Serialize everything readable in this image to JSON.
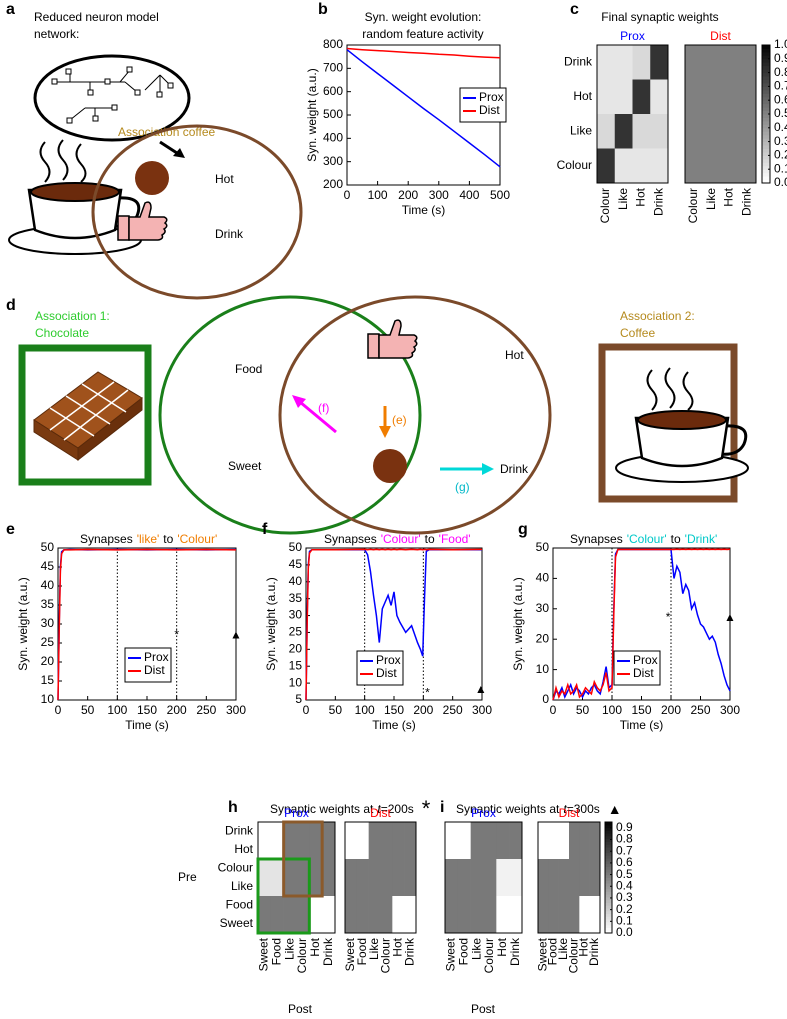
{
  "diagrams": {
    "a": {
      "panel": "a",
      "caption_lines": [
        "Reduced neuron model",
        "network:"
      ],
      "association": "Association coffee",
      "items": [
        "Hot",
        "Drink"
      ]
    },
    "d": {
      "panel": "d",
      "association_1": [
        "Association 1:",
        "Chocolate"
      ],
      "association_2": [
        "Association 2:",
        "Coffee"
      ],
      "labels": {
        "food": "Food",
        "sweet": "Sweet",
        "hot": "Hot",
        "drink": "Drink"
      },
      "arrows": [
        "(e)",
        "(f)",
        "(g)"
      ]
    }
  },
  "chart_data": [
    {
      "type": "line",
      "panel": "b",
      "title_lines": [
        "Syn. weight evolution:",
        "random feature activity"
      ],
      "xlabel": "Time (s)",
      "ylabel": "Syn. weight (a.u.)",
      "x": [
        0,
        50,
        100,
        150,
        200,
        250,
        300,
        350,
        400,
        450,
        500
      ],
      "series": [
        {
          "name": "Prox",
          "color": "#0000ff",
          "values": [
            780,
            728,
            678,
            628,
            578,
            528,
            480,
            430,
            380,
            330,
            278
          ]
        },
        {
          "name": "Dist",
          "color": "#ff0000",
          "values": [
            785,
            780,
            776,
            772,
            768,
            765,
            760,
            757,
            752,
            748,
            745
          ]
        }
      ],
      "xlim": [
        0,
        500
      ],
      "xticks": [
        0,
        100,
        200,
        300,
        400,
        500
      ],
      "ylim": [
        200,
        800
      ],
      "yticks": [
        200,
        300,
        400,
        500,
        600,
        700,
        800
      ]
    },
    {
      "type": "heatmap",
      "panel": "c",
      "title": "Final synaptic weights",
      "rows": [
        "Drink",
        "Hot",
        "Like",
        "Colour"
      ],
      "columns": [
        "Colour",
        "Like",
        "Hot",
        "Drink"
      ],
      "matrices": [
        {
          "name": "Prox",
          "color": "#0000ff",
          "values": [
            [
              0.1,
              0.1,
              0.15,
              0.8
            ],
            [
              0.1,
              0.1,
              0.8,
              0.1
            ],
            [
              0.15,
              0.8,
              0.15,
              0.15
            ],
            [
              0.8,
              0.1,
              0.1,
              0.1
            ]
          ]
        },
        {
          "name": "Dist",
          "color": "#ff0000",
          "values": [
            [
              0.5,
              0.5,
              0.5,
              0.5
            ],
            [
              0.5,
              0.5,
              0.5,
              0.5
            ],
            [
              0.5,
              0.5,
              0.5,
              0.5
            ],
            [
              0.5,
              0.5,
              0.5,
              0.5
            ]
          ]
        }
      ],
      "clim": [
        0,
        1
      ],
      "colorbar_ticks": [
        {
          "value": 0,
          "label": "0.0"
        },
        0.1,
        0.2,
        0.3,
        0.4,
        0.5,
        0.6,
        0.7,
        0.8,
        0.9,
        {
          "value": 1,
          "label": "1.0"
        }
      ]
    },
    {
      "type": "line",
      "panel": "e",
      "title_parts": [
        {
          "text": "Synapses",
          "color": "#000000"
        },
        {
          "text": "'like'",
          "color": "#f07d00"
        },
        {
          "text": "to",
          "color": "#000000"
        },
        {
          "text": "'Colour'",
          "color": "#f07d00"
        }
      ],
      "xlabel": "Time (s)",
      "ylabel": "Syn. weight (a.u.)",
      "x": [
        0,
        2,
        4,
        6,
        10,
        20,
        50,
        100,
        150,
        200,
        250,
        300
      ],
      "series": [
        {
          "name": "Prox",
          "color": "#0000ff",
          "values": [
            10,
            30,
            45,
            49,
            49.5,
            49.6,
            49.5,
            49.6,
            49.5,
            49.6,
            49.5,
            49.6
          ]
        },
        {
          "name": "Dist",
          "color": "#ff0000",
          "values": [
            10,
            28,
            44,
            48.5,
            49.5,
            49.5,
            49.6,
            49.5,
            49.6,
            49.5,
            49.6,
            49.5
          ]
        }
      ],
      "xlim": [
        0,
        300
      ],
      "xticks": [
        0,
        50,
        100,
        150,
        200,
        250,
        300
      ],
      "ylim": [
        10,
        50
      ],
      "yticks": [
        10,
        15,
        20,
        25,
        30,
        35,
        40,
        45,
        50
      ],
      "vlines": [
        100,
        200,
        300
      ],
      "annotations": [
        {
          "text": "*",
          "x": 200,
          "y": 27
        },
        {
          "text": "▲",
          "x": 300,
          "y": 27
        }
      ]
    },
    {
      "type": "line",
      "panel": "f",
      "title_parts": [
        {
          "text": "Synapses",
          "color": "#000000"
        },
        {
          "text": "'Colour'",
          "color": "#ff00ff"
        },
        {
          "text": "to",
          "color": "#000000"
        },
        {
          "text": "'Food'",
          "color": "#ff00ff"
        }
      ],
      "xlabel": "Time (s)",
      "ylabel": "Syn. weight (a.u.)",
      "x": [
        0,
        2,
        4,
        6,
        10,
        50,
        100,
        105,
        110,
        115,
        120,
        125,
        130,
        135,
        140,
        145,
        150,
        155,
        160,
        170,
        180,
        190,
        195,
        199,
        202,
        205,
        210,
        250,
        300
      ],
      "series": [
        {
          "name": "Prox",
          "color": "#0000ff",
          "values": [
            5,
            30,
            45,
            49,
            49.5,
            49.5,
            49.5,
            48,
            43,
            36,
            30,
            22,
            32,
            34,
            36,
            33,
            37,
            30,
            28,
            25,
            27,
            22,
            20,
            18,
            35,
            49,
            49.5,
            49.5,
            49.5
          ]
        },
        {
          "name": "Dist",
          "color": "#ff0000",
          "values": [
            5,
            28,
            44,
            48.5,
            49.5,
            49.5,
            49.6,
            49.5,
            49.6,
            49.5,
            49.6,
            49.5,
            49.6,
            49.5,
            49.6,
            49.5,
            49.6,
            49.5,
            49.6,
            49.5,
            49.6,
            49.5,
            49.6,
            49.5,
            49.6,
            49.5,
            49.6,
            49.5,
            49.6
          ]
        }
      ],
      "xlim": [
        0,
        300
      ],
      "xticks": [
        0,
        50,
        100,
        150,
        200,
        250,
        300
      ],
      "ylim": [
        5,
        50
      ],
      "yticks": [
        5,
        10,
        15,
        20,
        25,
        30,
        35,
        40,
        45,
        50
      ],
      "vlines": [
        100,
        200,
        300
      ],
      "annotations": [
        {
          "text": "*",
          "x": 207,
          "y": 7
        },
        {
          "text": "▲",
          "x": 298,
          "y": 8
        }
      ]
    },
    {
      "type": "line",
      "panel": "g",
      "title_parts": [
        {
          "text": "Synapses",
          "color": "#000000"
        },
        {
          "text": "'Colour'",
          "color": "#00c8c8"
        },
        {
          "text": "to",
          "color": "#000000"
        },
        {
          "text": "'Drink'",
          "color": "#00c8c8"
        }
      ],
      "xlabel": "Time (s)",
      "ylabel": "Syn. weight (a.u.)",
      "x": [
        0,
        5,
        10,
        15,
        20,
        25,
        30,
        35,
        40,
        45,
        50,
        55,
        60,
        65,
        70,
        75,
        80,
        85,
        90,
        95,
        100,
        103,
        106,
        110,
        150,
        200,
        205,
        210,
        215,
        220,
        225,
        230,
        235,
        240,
        245,
        250,
        255,
        260,
        265,
        270,
        275,
        280,
        285,
        290,
        295,
        300
      ],
      "series": [
        {
          "name": "Prox",
          "color": "#0000ff",
          "values": [
            0,
            3,
            2,
            4,
            1,
            3,
            5,
            2,
            4,
            3,
            1,
            3,
            2,
            4,
            5,
            3,
            2,
            6,
            11,
            4,
            5,
            30,
            48,
            49.5,
            49.5,
            49.5,
            40,
            44,
            42,
            35,
            38,
            36,
            30,
            32,
            28,
            25,
            24,
            22,
            20,
            21,
            19,
            15,
            12,
            8,
            5,
            3
          ]
        },
        {
          "name": "Dist",
          "color": "#ff0000",
          "values": [
            0,
            4,
            1,
            3,
            2,
            5,
            2,
            3,
            5,
            1,
            2,
            4,
            3,
            2,
            6,
            4,
            3,
            5,
            9,
            3,
            4,
            28,
            47,
            49.5,
            49.5,
            49.5,
            49.5,
            49.6,
            49.5,
            49.6,
            49.5,
            49.6,
            49.5,
            49.6,
            49.5,
            49.6,
            49.5,
            49.6,
            49.5,
            49.6,
            49.5,
            49.6,
            49.5,
            49.6,
            49.5,
            49.6
          ]
        }
      ],
      "xlim": [
        0,
        300
      ],
      "xticks": [
        0,
        50,
        100,
        150,
        200,
        250,
        300
      ],
      "ylim": [
        0,
        50
      ],
      "yticks": [
        0,
        10,
        20,
        30,
        40,
        50
      ],
      "vlines": [
        100,
        200,
        300
      ],
      "annotations": [
        {
          "text": "*",
          "x": 195,
          "y": 27
        },
        {
          "text": "▲",
          "x": 300,
          "y": 27
        }
      ]
    },
    {
      "type": "heatmap",
      "panel": "h",
      "title_parts": [
        {
          "text": "Synaptic weights at",
          "italic": false
        },
        {
          "text": "t",
          "italic": true
        },
        {
          "text": "=200s",
          "italic": false
        }
      ],
      "symbol": "*",
      "associations": [
        {
          "name": "Association 1",
          "color": "#2ecc2e"
        },
        {
          "name": "Association 2",
          "color": "#8b5a2b"
        }
      ],
      "ylabel": "Pre",
      "xlabel": "Post",
      "rows": [
        "Drink",
        "Hot",
        "Colour",
        "Like",
        "Food",
        "Sweet"
      ],
      "columns": [
        "Sweet",
        "Food",
        "Like",
        "Colour",
        "Hot",
        "Drink"
      ],
      "matrices": [
        {
          "name": "Prox",
          "color": "#0000ff",
          "values": [
            [
              0,
              0,
              0.5,
              0.5,
              0.5,
              0.5
            ],
            [
              0,
              0,
              0.5,
              0.5,
              0.5,
              0.5
            ],
            [
              0.1,
              0.1,
              0.5,
              0.5,
              0.5,
              0.5
            ],
            [
              0.1,
              0.1,
              0.5,
              0.5,
              0.5,
              0.5
            ],
            [
              0.5,
              0.5,
              0.5,
              0.5,
              0,
              0
            ],
            [
              0.5,
              0.5,
              0.5,
              0.5,
              0,
              0
            ]
          ]
        },
        {
          "name": "Dist",
          "color": "#ff0000",
          "values": [
            [
              0,
              0,
              0.5,
              0.5,
              0.5,
              0.5
            ],
            [
              0,
              0,
              0.5,
              0.5,
              0.5,
              0.5
            ],
            [
              0.5,
              0.5,
              0.5,
              0.5,
              0.5,
              0.5
            ],
            [
              0.5,
              0.5,
              0.5,
              0.5,
              0.5,
              0.5
            ],
            [
              0.5,
              0.5,
              0.5,
              0.5,
              0,
              0
            ],
            [
              0.5,
              0.5,
              0.5,
              0.5,
              0,
              0
            ]
          ]
        }
      ],
      "clim": [
        0,
        0.95
      ]
    },
    {
      "type": "heatmap",
      "panel": "i",
      "title_parts": [
        {
          "text": "Synaptic weights at",
          "italic": false
        },
        {
          "text": "t",
          "italic": true
        },
        {
          "text": "=300s",
          "italic": false
        }
      ],
      "symbol": "▲",
      "xlabel": "Post",
      "columns": [
        "Sweet",
        "Food",
        "Like",
        "Colour",
        "Hot",
        "Drink"
      ],
      "matrices": [
        {
          "name": "Prox",
          "color": "#0000ff",
          "values": [
            [
              0,
              0,
              0.5,
              0.5,
              0.5,
              0.5
            ],
            [
              0,
              0,
              0.5,
              0.5,
              0.5,
              0.5
            ],
            [
              0.5,
              0.5,
              0.5,
              0.5,
              0.05,
              0.05
            ],
            [
              0.5,
              0.5,
              0.5,
              0.5,
              0.05,
              0.05
            ],
            [
              0.5,
              0.5,
              0.5,
              0.5,
              0,
              0
            ],
            [
              0.5,
              0.5,
              0.5,
              0.5,
              0,
              0
            ]
          ]
        },
        {
          "name": "Dist",
          "color": "#ff0000",
          "values": [
            [
              0,
              0,
              0,
              0.5,
              0.5,
              0.5
            ],
            [
              0,
              0,
              0,
              0.5,
              0.5,
              0.5
            ],
            [
              0.5,
              0.5,
              0.5,
              0.5,
              0.5,
              0.5
            ],
            [
              0.5,
              0.5,
              0.5,
              0.5,
              0.5,
              0.5
            ],
            [
              0.5,
              0.5,
              0.5,
              0.5,
              0,
              0
            ],
            [
              0.5,
              0.5,
              0.5,
              0.5,
              0,
              0
            ]
          ]
        }
      ],
      "clim": [
        0,
        0.95
      ],
      "colorbar_ticks": [
        {
          "value": 0,
          "label": "0.0"
        },
        0.1,
        0.2,
        0.3,
        0.4,
        0.5,
        0.6,
        0.7,
        0.8,
        0.9
      ]
    }
  ]
}
